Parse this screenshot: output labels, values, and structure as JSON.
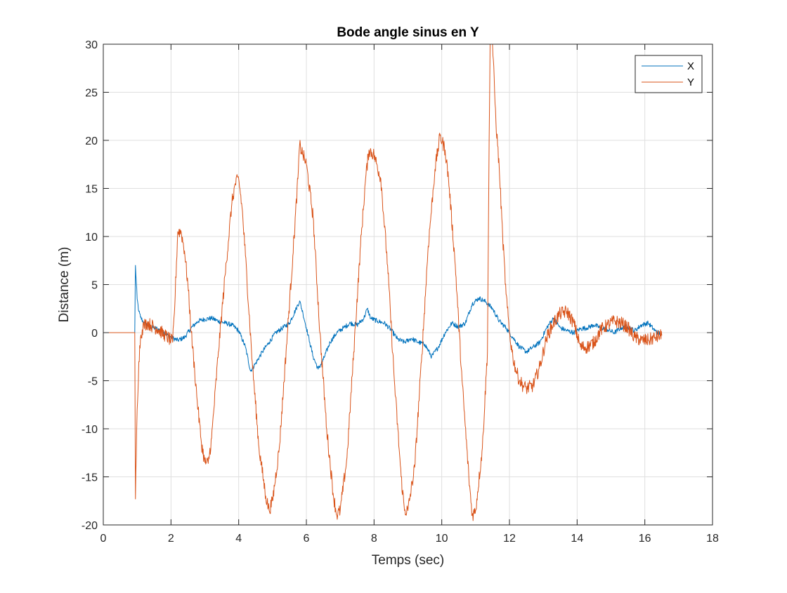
{
  "chart_data": {
    "type": "line",
    "title": "Bode angle sinus en Y",
    "xlabel": "Temps (sec)",
    "ylabel": "Distance (m)",
    "xlim": [
      0,
      18
    ],
    "ylim": [
      -20,
      30
    ],
    "xticks": [
      0,
      2,
      4,
      6,
      8,
      10,
      12,
      14,
      16,
      18
    ],
    "yticks": [
      -20,
      -15,
      -10,
      -5,
      0,
      5,
      10,
      15,
      20,
      25,
      30
    ],
    "grid": true,
    "legend": {
      "position": "top-right"
    },
    "series": [
      {
        "name": "X",
        "color": "#0072BD",
        "noise": 0.25,
        "x": [
          0,
          0.93,
          0.95,
          1.0,
          1.05,
          1.1,
          1.2,
          1.3,
          1.4,
          1.6,
          1.8,
          2.0,
          2.2,
          2.4,
          2.6,
          2.8,
          3.0,
          3.2,
          3.4,
          3.6,
          3.8,
          4.0,
          4.2,
          4.35,
          4.5,
          4.7,
          4.9,
          5.1,
          5.3,
          5.5,
          5.7,
          5.8,
          5.9,
          6.0,
          6.1,
          6.2,
          6.35,
          6.5,
          6.7,
          6.9,
          7.1,
          7.3,
          7.5,
          7.7,
          7.8,
          7.9,
          8.1,
          8.3,
          8.5,
          8.7,
          8.9,
          9.1,
          9.3,
          9.5,
          9.7,
          9.9,
          10.1,
          10.3,
          10.5,
          10.7,
          10.9,
          11.1,
          11.3,
          11.5,
          11.7,
          11.9,
          12.1,
          12.3,
          12.5,
          12.7,
          12.9,
          13.1,
          13.3,
          13.5,
          13.7,
          13.9,
          14.1,
          14.3,
          14.5,
          14.7,
          14.9,
          15.1,
          15.3,
          15.5,
          15.7,
          15.9,
          16.1,
          16.3,
          16.5
        ],
        "y": [
          0,
          0,
          7.0,
          3.5,
          2.2,
          1.6,
          1.0,
          0.8,
          0.6,
          0.4,
          0.0,
          -0.5,
          -0.8,
          -0.5,
          0.5,
          1.2,
          1.4,
          1.5,
          1.2,
          1.0,
          0.8,
          0.2,
          -1.5,
          -4.0,
          -3.2,
          -2.0,
          -1.0,
          0.0,
          0.5,
          1.0,
          2.5,
          3.3,
          2.0,
          0.5,
          -1.0,
          -2.5,
          -3.8,
          -2.8,
          -1.0,
          0.0,
          0.5,
          1.0,
          0.8,
          1.5,
          2.5,
          1.5,
          1.2,
          1.0,
          0.3,
          -0.7,
          -1.0,
          -0.6,
          -1.0,
          -1.2,
          -2.5,
          -1.5,
          0.0,
          1.0,
          0.6,
          1.0,
          3.0,
          3.6,
          3.2,
          2.5,
          1.2,
          0.5,
          -0.5,
          -1.5,
          -2.0,
          -1.5,
          -1.0,
          0.5,
          1.5,
          0.5,
          0.2,
          0.0,
          0.4,
          0.5,
          0.8,
          0.5,
          0.3,
          0.0,
          0.5,
          0.6,
          0.2,
          0.8,
          1.0,
          0.2,
          -0.2
        ]
      },
      {
        "name": "Y",
        "color": "#D95319",
        "noise": 0.7,
        "x": [
          0,
          0.93,
          0.95,
          1.0,
          1.05,
          1.1,
          1.15,
          1.2,
          1.3,
          1.4,
          1.6,
          1.8,
          2.0,
          2.05,
          2.1,
          2.2,
          2.3,
          2.4,
          2.5,
          2.6,
          2.7,
          2.8,
          2.9,
          3.0,
          3.1,
          3.2,
          3.4,
          3.6,
          3.8,
          3.9,
          4.0,
          4.1,
          4.2,
          4.4,
          4.6,
          4.8,
          4.9,
          5.0,
          5.2,
          5.4,
          5.6,
          5.75,
          5.8,
          5.9,
          6.0,
          6.2,
          6.4,
          6.6,
          6.8,
          6.9,
          7.0,
          7.2,
          7.4,
          7.6,
          7.75,
          7.85,
          8.0,
          8.2,
          8.4,
          8.6,
          8.8,
          8.9,
          9.0,
          9.2,
          9.4,
          9.6,
          9.8,
          9.95,
          10.1,
          10.2,
          10.4,
          10.6,
          10.8,
          10.9,
          11.0,
          11.2,
          11.35,
          11.4,
          11.43,
          11.47,
          11.5,
          11.6,
          11.7,
          11.8,
          11.9,
          12.0,
          12.1,
          12.2,
          12.3,
          12.4,
          12.5,
          12.7,
          12.9,
          13.1,
          13.3,
          13.5,
          13.7,
          13.9,
          14.1,
          14.3,
          14.5,
          14.7,
          14.9,
          15.1,
          15.3,
          15.5,
          15.7,
          15.9,
          16.1,
          16.3,
          16.5
        ],
        "y": [
          0,
          0,
          -17.3,
          -8.0,
          -3.0,
          -0.5,
          0.3,
          0.8,
          1.0,
          0.8,
          0.4,
          -0.2,
          -0.8,
          -1.0,
          2.0,
          10.5,
          10.5,
          8.5,
          5.0,
          0.0,
          -4.0,
          -8.0,
          -11.5,
          -13.5,
          -13.6,
          -11.0,
          -2.0,
          6.0,
          13.5,
          15.5,
          16.0,
          13.0,
          8.0,
          -3.0,
          -12.0,
          -17.0,
          -18.5,
          -17.5,
          -12.0,
          -2.0,
          8.0,
          16.0,
          19.5,
          18.5,
          17.5,
          12.0,
          0.0,
          -10.0,
          -17.0,
          -19.0,
          -18.5,
          -13.0,
          -2.0,
          9.0,
          16.0,
          19.0,
          18.5,
          16.0,
          7.0,
          -5.0,
          -15.0,
          -18.5,
          -18.5,
          -14.0,
          -3.0,
          9.0,
          17.0,
          20.5,
          19.0,
          16.0,
          7.0,
          -5.0,
          -15.0,
          -19.0,
          -18.5,
          -12.0,
          -2.0,
          20.0,
          30.5,
          30.5,
          30.0,
          22.0,
          17.0,
          10.0,
          4.0,
          0.0,
          -2.5,
          -4.0,
          -5.0,
          -5.5,
          -5.8,
          -5.5,
          -3.5,
          -0.5,
          1.0,
          2.0,
          2.2,
          1.0,
          -1.5,
          -1.5,
          -1.0,
          0.3,
          0.8,
          1.2,
          1.0,
          0.5,
          -0.5,
          -0.8,
          -0.8,
          -0.5,
          -0.3
        ]
      }
    ]
  }
}
